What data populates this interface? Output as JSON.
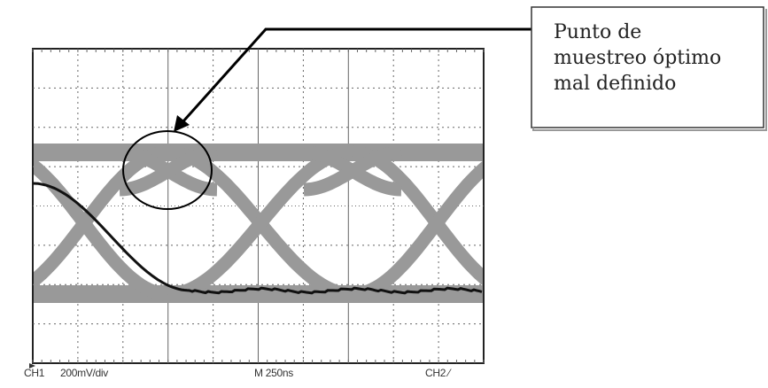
{
  "callout": {
    "lines": [
      "Punto de",
      "muestreo óptimo",
      "mal definido"
    ]
  },
  "scope": {
    "channel_label": "CH1",
    "vertical_scale": "200mV/div",
    "timebase": "M 250ns",
    "trigger": "CH2 ⁄"
  },
  "colors": {
    "eye_trace": "#999999",
    "overlay_trace": "#111111",
    "grid": "#666666",
    "frame": "#222222"
  }
}
